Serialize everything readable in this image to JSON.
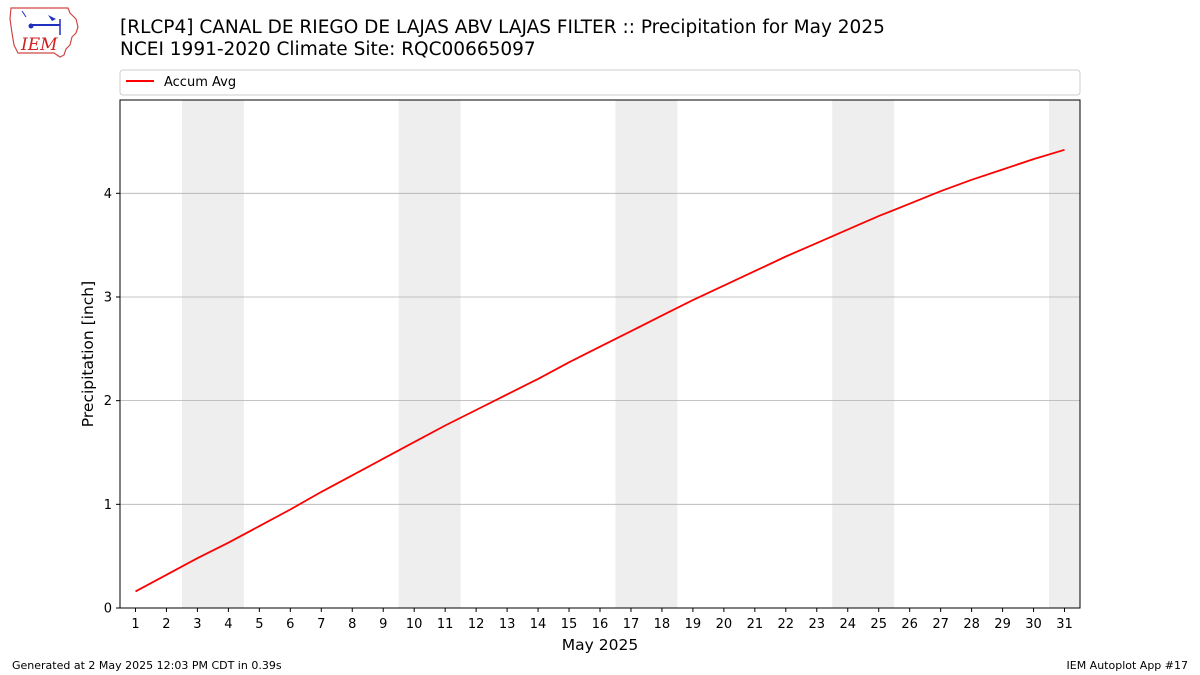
{
  "header": {
    "title_line1": "[RLCP4] CANAL DE RIEGO DE LAJAS ABV LAJAS FILTER :: Precipitation for May 2025",
    "title_line2": "NCEI 1991-2020 Climate Site: RQC00665097",
    "logo_text": "IEM"
  },
  "footer": {
    "left": "Generated at 2 May 2025 12:03 PM CDT in 0.39s",
    "right": "IEM Autoplot App #17"
  },
  "colors": {
    "line": "#ff0000",
    "weekend_band": "#eeeeee",
    "grid": "#b0b0b0"
  },
  "chart_data": {
    "type": "line",
    "xlabel": "May 2025",
    "ylabel": "Precipitation [inch]",
    "xlim": [
      0.5,
      31.5
    ],
    "ylim": [
      0,
      4.9
    ],
    "yticks": [
      0,
      1,
      2,
      3,
      4
    ],
    "xticks": [
      1,
      2,
      3,
      4,
      5,
      6,
      7,
      8,
      9,
      10,
      11,
      12,
      13,
      14,
      15,
      16,
      17,
      18,
      19,
      20,
      21,
      22,
      23,
      24,
      25,
      26,
      27,
      28,
      29,
      30,
      31
    ],
    "grid": "y-major",
    "legend": {
      "placement": "top-left-above",
      "entries": [
        "Accum Avg"
      ]
    },
    "weekend_bands": [
      [
        2.5,
        4.5
      ],
      [
        9.5,
        11.5
      ],
      [
        16.5,
        18.5
      ],
      [
        23.5,
        25.5
      ],
      [
        30.5,
        31.5
      ]
    ],
    "series": [
      {
        "name": "Accum Avg",
        "x": [
          1,
          2,
          3,
          4,
          5,
          6,
          7,
          8,
          9,
          10,
          11,
          12,
          13,
          14,
          15,
          16,
          17,
          18,
          19,
          20,
          21,
          22,
          23,
          24,
          25,
          26,
          27,
          28,
          29,
          30,
          31
        ],
        "values": [
          0.16,
          0.32,
          0.48,
          0.63,
          0.79,
          0.95,
          1.12,
          1.28,
          1.44,
          1.6,
          1.76,
          1.91,
          2.06,
          2.21,
          2.37,
          2.52,
          2.67,
          2.82,
          2.97,
          3.11,
          3.25,
          3.39,
          3.52,
          3.65,
          3.78,
          3.9,
          4.02,
          4.13,
          4.23,
          4.33,
          4.42
        ]
      }
    ]
  }
}
